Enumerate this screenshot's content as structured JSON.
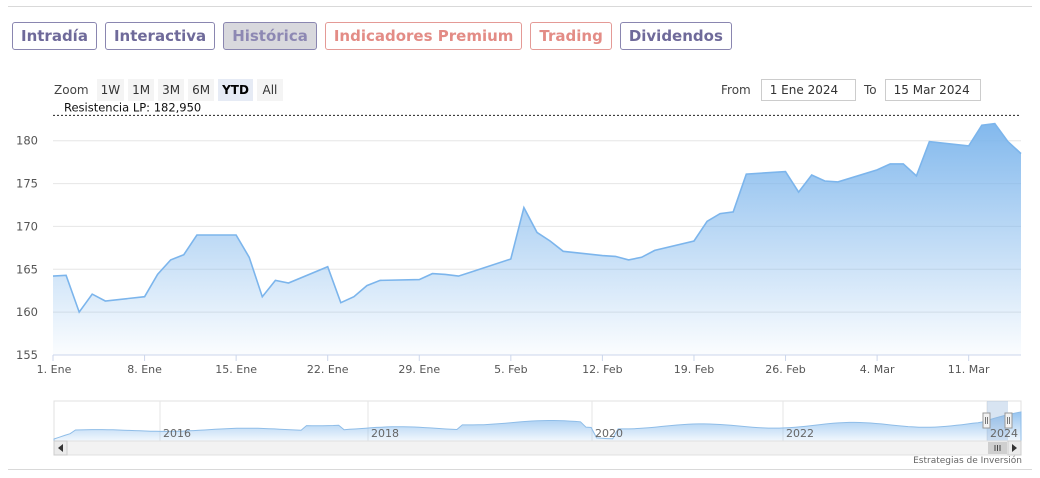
{
  "tabs": [
    {
      "label": "Intradía",
      "style": "normal"
    },
    {
      "label": "Interactiva",
      "style": "normal"
    },
    {
      "label": "Histórica",
      "style": "active"
    },
    {
      "label": "Indicadores Premium",
      "style": "premium"
    },
    {
      "label": "Trading",
      "style": "premium"
    },
    {
      "label": "Dividendos",
      "style": "normal"
    }
  ],
  "zoom": {
    "label": "Zoom",
    "buttons": [
      "1W",
      "1M",
      "3M",
      "6M",
      "YTD",
      "All"
    ],
    "active": "YTD"
  },
  "range": {
    "from_label": "From",
    "from_value": "1 Ene 2024",
    "to_label": "To",
    "to_value": "15 Mar 2024"
  },
  "annotation": "Resistencia LP: 182,950",
  "credit": "Estrategias de Inversión",
  "colors": {
    "line": "#7cb5ec",
    "tab_border": "#8a86b0",
    "premium": "#e38c86"
  },
  "chart_data": {
    "type": "area",
    "ylim": [
      155,
      183
    ],
    "yticks": [
      155,
      160,
      165,
      170,
      175,
      180
    ],
    "xticks": [
      "1. Ene",
      "8. Ene",
      "15. Ene",
      "22. Ene",
      "29. Ene",
      "5. Feb",
      "12. Feb",
      "19. Feb",
      "26. Feb",
      "4. Mar",
      "11. Mar"
    ],
    "resistance": 182.95,
    "series": [
      {
        "x": [
          "2024-01-01",
          "2024-01-02",
          "2024-01-03",
          "2024-01-04",
          "2024-01-05",
          "2024-01-08",
          "2024-01-09",
          "2024-01-10",
          "2024-01-11",
          "2024-01-12",
          "2024-01-15",
          "2024-01-16",
          "2024-01-17",
          "2024-01-18",
          "2024-01-19",
          "2024-01-22",
          "2024-01-23",
          "2024-01-24",
          "2024-01-25",
          "2024-01-26",
          "2024-01-29",
          "2024-01-30",
          "2024-01-31",
          "2024-02-01",
          "2024-02-02",
          "2024-02-05",
          "2024-02-06",
          "2024-02-07",
          "2024-02-08",
          "2024-02-09",
          "2024-02-12",
          "2024-02-13",
          "2024-02-14",
          "2024-02-15",
          "2024-02-16",
          "2024-02-19",
          "2024-02-20",
          "2024-02-21",
          "2024-02-22",
          "2024-02-23",
          "2024-02-26",
          "2024-02-27",
          "2024-02-28",
          "2024-02-29",
          "2024-03-01",
          "2024-03-04",
          "2024-03-05",
          "2024-03-06",
          "2024-03-07",
          "2024-03-08",
          "2024-03-11",
          "2024-03-12",
          "2024-03-13",
          "2024-03-14",
          "2024-03-15"
        ],
        "values": [
          164.2,
          164.3,
          160.0,
          162.1,
          161.3,
          161.8,
          164.4,
          166.1,
          166.7,
          169.0,
          169.0,
          166.4,
          161.8,
          163.7,
          163.4,
          165.3,
          161.1,
          161.8,
          163.1,
          163.7,
          163.8,
          164.5,
          164.4,
          164.2,
          164.7,
          166.2,
          172.2,
          169.3,
          168.3,
          167.1,
          166.6,
          166.5,
          166.1,
          166.4,
          167.2,
          168.3,
          170.6,
          171.5,
          171.7,
          176.1,
          176.4,
          174.0,
          176.0,
          175.3,
          175.2,
          176.6,
          177.3,
          177.3,
          175.9,
          179.9,
          179.4,
          181.8,
          182.0,
          179.9,
          178.5
        ]
      }
    ]
  }
}
